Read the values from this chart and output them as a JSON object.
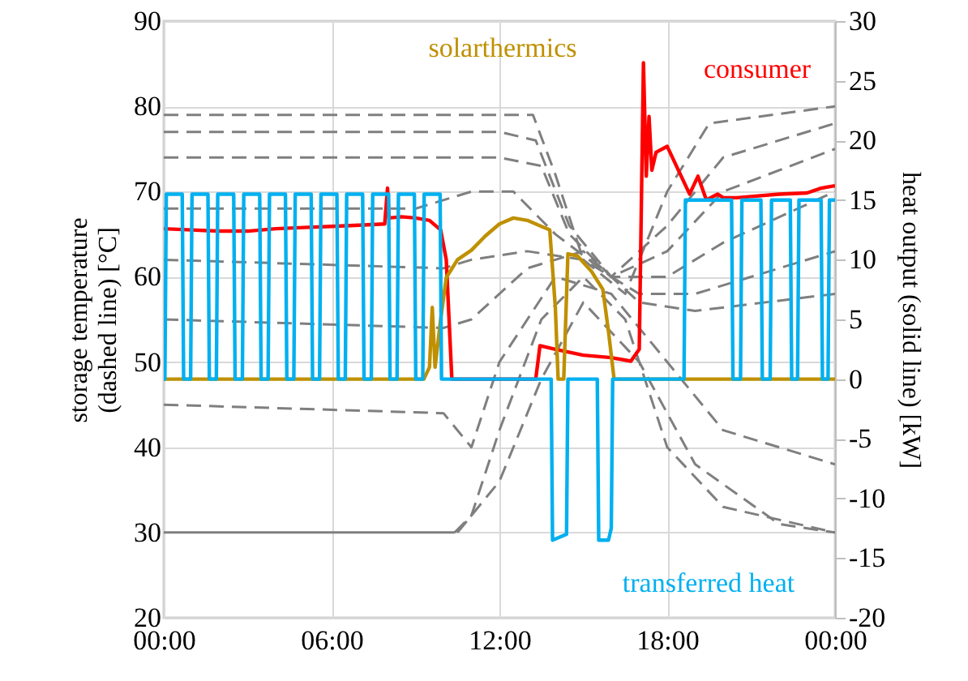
{
  "chart_data": {
    "type": "line",
    "ylabel": "storage temperature\n(dashed line) [°C]",
    "y2label": "heat output (solid line) [kW]",
    "xlim": [
      0,
      24
    ],
    "xticks": [
      {
        "value": 0,
        "label": "00:00"
      },
      {
        "value": 6,
        "label": "06:00"
      },
      {
        "value": 12,
        "label": "12:00"
      },
      {
        "value": 18,
        "label": "18:00"
      },
      {
        "value": 24,
        "label": "00:00"
      }
    ],
    "ylim": [
      20,
      90
    ],
    "yticks": [
      20,
      30,
      40,
      50,
      60,
      70,
      80,
      90
    ],
    "y2lim": [
      -20,
      30
    ],
    "y2ticks": [
      -20,
      -15,
      -10,
      -5,
      0,
      5,
      10,
      15,
      20,
      25,
      30
    ],
    "grid": true,
    "marker": "none",
    "series": [
      {
        "color": "#7f7f7f",
        "line_style": "dashed",
        "x": [
          0,
          6,
          12,
          13.2,
          14,
          15,
          16.5,
          18,
          19.5,
          24
        ],
        "values": [
          79,
          79,
          79,
          79,
          72,
          62,
          58,
          70,
          78,
          80
        ]
      },
      {
        "color": "#7f7f7f",
        "line_style": "dashed",
        "x": [
          0,
          12,
          13.3,
          14.5,
          16,
          18,
          20,
          24
        ],
        "values": [
          77,
          77,
          76,
          66,
          60,
          66,
          74,
          78
        ]
      },
      {
        "color": "#7f7f7f",
        "line_style": "dashed",
        "x": [
          0,
          12,
          13.5,
          14.5,
          16,
          18,
          20,
          24
        ],
        "values": [
          74,
          74,
          73,
          65,
          60,
          63,
          70,
          75
        ]
      },
      {
        "color": "#7f7f7f",
        "line_style": "dashed",
        "x": [
          0,
          9,
          11,
          12.5,
          14,
          16,
          18,
          20,
          24
        ],
        "values": [
          68,
          68,
          70,
          70,
          65,
          60,
          60,
          64,
          70
        ]
      },
      {
        "color": "#7f7f7f",
        "line_style": "dashed",
        "x": [
          0,
          10,
          11,
          13,
          15,
          17,
          19,
          24
        ],
        "values": [
          62,
          61,
          62,
          63,
          62,
          58,
          58,
          63
        ]
      },
      {
        "color": "#7f7f7f",
        "line_style": "dashed",
        "x": [
          0,
          10,
          11,
          13,
          15,
          17,
          19,
          24
        ],
        "values": [
          55,
          54,
          55,
          61,
          63,
          57,
          56,
          58
        ]
      },
      {
        "color": "#7f7f7f",
        "line_style": "dashed",
        "x": [
          0,
          10,
          11,
          12,
          14,
          16,
          18,
          20,
          24
        ],
        "values": [
          45,
          44,
          40,
          50,
          60,
          58,
          50,
          42,
          38
        ]
      },
      {
        "color": "#7f7f7f",
        "line_style": "solid",
        "x": [
          0,
          10.4
        ],
        "values": [
          30,
          30
        ]
      },
      {
        "color": "#7f7f7f",
        "line_style": "dashed",
        "x": [
          10.4,
          11,
          12,
          13.5,
          15,
          16.5,
          18,
          20,
          24
        ],
        "values": [
          30,
          32,
          42,
          55,
          60,
          55,
          40,
          33,
          30
        ]
      },
      {
        "color": "#7f7f7f",
        "line_style": "dashed",
        "x": [
          10.5,
          12,
          13.5,
          15,
          17,
          19,
          22,
          24
        ],
        "values": [
          30,
          36,
          48,
          57,
          50,
          38,
          31,
          30
        ]
      },
      {
        "name": "consumer",
        "color": "#ff0000",
        "axis": "y2",
        "line_style": "solid",
        "x": [
          0,
          1,
          2,
          3,
          4,
          5,
          6,
          7,
          7.9,
          8.0,
          8.05,
          8.5,
          9,
          9.5,
          9.9,
          10.1,
          10.3,
          13.3,
          13.45,
          14,
          15,
          16,
          16.7,
          17.0,
          17.15,
          17.25,
          17.35,
          17.45,
          17.6,
          18,
          18.5,
          18.8,
          19.1,
          19.4,
          19.8,
          20,
          20.5,
          21,
          22,
          23,
          23.5,
          24
        ],
        "values": [
          12.6,
          12.5,
          12.4,
          12.4,
          12.6,
          12.7,
          12.8,
          12.9,
          13,
          16,
          13.5,
          13.6,
          13.5,
          13.3,
          12.5,
          10,
          0,
          0,
          2.8,
          2.5,
          2,
          1.8,
          1.5,
          2.5,
          26.5,
          17,
          22,
          17.5,
          19,
          19.5,
          17,
          15.5,
          17,
          15,
          15.5,
          15.2,
          15.2,
          15.3,
          15.5,
          15.6,
          16,
          16.2
        ]
      },
      {
        "name": "solarthermics",
        "color": "#bf9000",
        "axis": "y2",
        "line_style": "solid",
        "x": [
          0,
          9.3,
          9.5,
          9.6,
          9.7,
          9.9,
          10.1,
          10.5,
          11,
          11.5,
          12,
          12.5,
          13,
          13.5,
          13.8,
          14.0,
          14.1,
          14.3,
          14.45,
          14.8,
          15.3,
          15.7,
          15.9,
          16.1,
          24
        ],
        "values": [
          0,
          0,
          1,
          6,
          1,
          5,
          8.5,
          10,
          10.8,
          12,
          13,
          13.5,
          13.3,
          12.8,
          12.5,
          6,
          0,
          0,
          10.5,
          10.3,
          9,
          7.5,
          4,
          0,
          0
        ]
      },
      {
        "name": "transferred heat",
        "color": "#00b0f0",
        "axis": "y2",
        "line_style": "solid",
        "x": [
          0,
          0.04,
          0.09,
          0.66,
          0.71,
          0.96,
          1.01,
          1.58,
          1.63,
          1.88,
          1.93,
          2.5,
          2.55,
          2.81,
          2.86,
          3.43,
          3.48,
          3.73,
          3.78,
          4.35,
          4.4,
          4.65,
          4.7,
          5.27,
          5.32,
          5.57,
          5.62,
          6.19,
          6.24,
          6.49,
          6.54,
          7.11,
          7.16,
          7.42,
          7.47,
          8.04,
          8.09,
          8.34,
          8.39,
          8.96,
          9.01,
          9.26,
          9.31,
          9.88,
          9.93,
          13.85,
          13.9,
          14.4,
          14.45,
          15.5,
          15.55,
          15.9,
          16.0,
          16.05,
          18.6,
          18.65,
          20.3,
          20.35,
          20.62,
          20.67,
          21.35,
          21.4,
          21.68,
          21.73,
          22.4,
          22.45,
          22.66,
          22.71,
          23.5,
          23.55,
          23.75,
          23.8,
          24
        ],
        "values": [
          0,
          0,
          15.5,
          15.5,
          0,
          0,
          15.5,
          15.5,
          0,
          0,
          15.5,
          15.5,
          0,
          0,
          15.5,
          15.5,
          0,
          0,
          15.5,
          15.5,
          0,
          0,
          15.5,
          15.5,
          0,
          0,
          15.5,
          15.5,
          0,
          0,
          15.5,
          15.5,
          0,
          0,
          15.5,
          15.5,
          0,
          0,
          15.5,
          15.5,
          0,
          0,
          15.5,
          15.5,
          0,
          0,
          -13.5,
          -13,
          0,
          0,
          -13.5,
          -13.5,
          -12.5,
          0,
          0,
          15,
          15,
          0,
          0,
          15,
          15,
          0,
          0,
          15,
          15,
          0,
          0,
          15,
          15,
          0,
          0,
          15,
          15
        ]
      }
    ]
  }
}
